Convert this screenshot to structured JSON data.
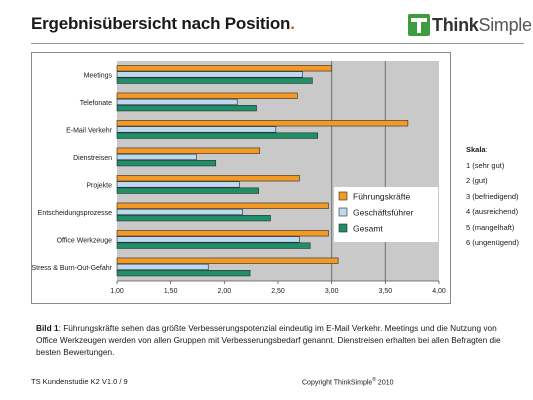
{
  "header": {
    "title": "Ergebnisübersicht nach Position",
    "title_dot": ".",
    "logo_text_bold": "Think",
    "logo_text_rest": "Simple"
  },
  "colors": {
    "fuehrung": "#f39a25",
    "geschaeft": "#bcd9f2",
    "gesamt": "#1e8f66",
    "plot_bg": "#c9c9c9",
    "gridline": "#6e6e6e",
    "accent": "#cc6600",
    "logo_green": "#3e9b3e"
  },
  "chart_data": {
    "type": "bar",
    "orientation": "horizontal",
    "categories": [
      "Meetings",
      "Telefonate",
      "E-Mail Verkehr",
      "Dienstreisen",
      "Projekte",
      "Entscheidungsprozesse",
      "Office Werkzeuge",
      "Stress & Burn-Out-Gefahr"
    ],
    "series": [
      {
        "name": "Führungskräfte",
        "color": "#f39a25",
        "values": [
          3.0,
          2.68,
          3.71,
          2.33,
          2.7,
          2.97,
          2.97,
          3.06
        ]
      },
      {
        "name": "Geschäftsführer",
        "color": "#bcd9f2",
        "values": [
          2.73,
          2.12,
          2.48,
          1.74,
          2.14,
          2.17,
          2.7,
          1.85
        ]
      },
      {
        "name": "Gesamt",
        "color": "#1e8f66",
        "values": [
          2.82,
          2.3,
          2.87,
          1.92,
          2.32,
          2.43,
          2.8,
          2.24
        ]
      }
    ],
    "xlim": [
      1.0,
      4.0
    ],
    "x_ticks": [
      "1,00",
      "1,50",
      "2,00",
      "2,50",
      "3,00",
      "3,50",
      "4,00"
    ],
    "x_tick_values": [
      1.0,
      1.5,
      2.0,
      2.5,
      3.0,
      3.5,
      4.0
    ],
    "vertical_gridlines": [
      3.0,
      3.5
    ],
    "legend_position": "right"
  },
  "scale": {
    "title": "Skala",
    "title_suffix": ":",
    "items": [
      "1 (sehr gut)",
      "2 (gut)",
      "3 (befriedigend)",
      "4 (ausreichend)",
      "5 (mangelhaft)",
      "6 (ungenügend)"
    ]
  },
  "caption": {
    "label": "Bild 1",
    "text": ": Führungskräfte sehen das größte Verbesserungspotenzial eindeutig im E-Mail Verkehr. Meetings und die Nutzung von Office Werkzeugen werden von allen Gruppen mit Verbesserungsbedarf genannt. Dienstreisen erhalten bei allen Befragten die besten Bewertungen."
  },
  "footer": {
    "left": "TS Kundenstudie K2 V1.0 / 9",
    "right_prefix": "Copyright ThinkSimple",
    "right_reg": "®",
    "right_suffix": " 2010"
  }
}
